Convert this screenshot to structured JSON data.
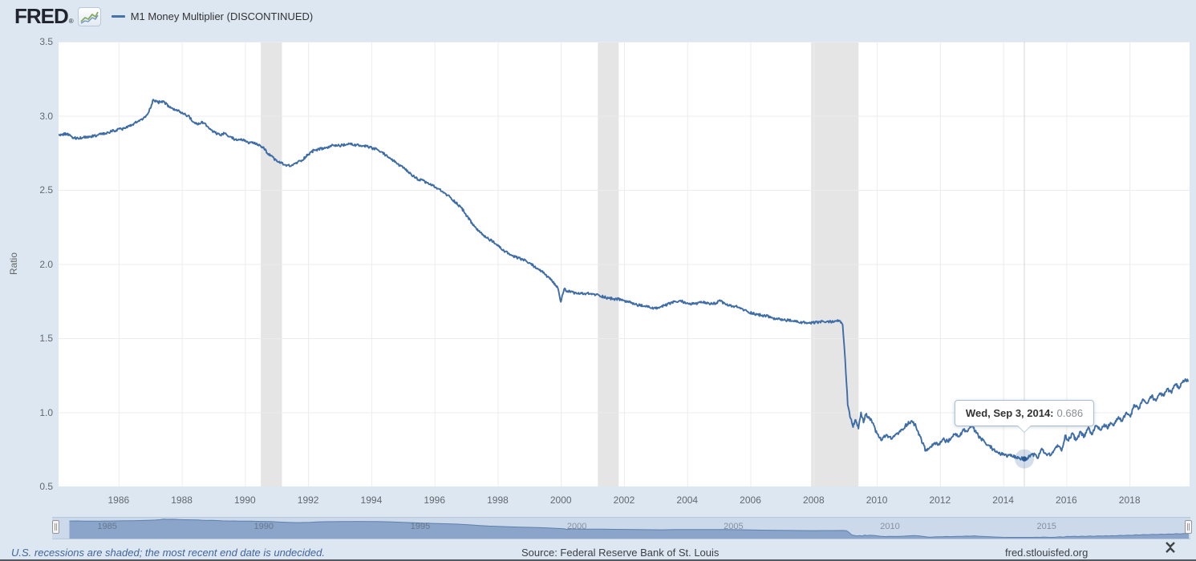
{
  "header": {
    "logo_text": "FRED",
    "logo_registered": "®",
    "legend": {
      "marker_color": "#4572a7",
      "label": "M1 Money Multiplier (DISCONTINUED)"
    }
  },
  "chart": {
    "y_axis": {
      "title": "Ratio",
      "tick_labels": [
        "3.5",
        "3.0",
        "2.5",
        "2.0",
        "1.5",
        "1.0",
        "0.5"
      ],
      "min": 0.5,
      "max": 3.5
    },
    "x_axis": {
      "tick_years": [
        1986,
        1988,
        1990,
        1992,
        1994,
        1996,
        1998,
        2000,
        2002,
        2004,
        2006,
        2008,
        2010,
        2012,
        2014,
        2016,
        2018
      ],
      "min_year": 1984.1,
      "max_year": 2019.9
    }
  },
  "tooltip": {
    "date_label": "Wed, Sep 3, 2014:",
    "value": "0.686",
    "point_year": 2014.67,
    "point_value": 0.686
  },
  "navigator": {
    "tick_years": [
      1985,
      1990,
      1995,
      2000,
      2005,
      2010,
      2015
    ],
    "min_year": 1983.55,
    "max_year": 2019.9
  },
  "footer": {
    "note": "U.S. recessions are shaded; the most recent end date is undecided.",
    "source": "Source: Federal Reserve Bank of St. Louis",
    "site": "fred.stlouisfed.org"
  },
  "colors": {
    "series": "#3d6ca6",
    "marker_dot": "#2a5a8f",
    "background": "#dde7f1",
    "plot_bg": "#ffffff",
    "recession_band": "#e5e5e5",
    "grid": "#ececec",
    "crosshair": "#d6d6d6",
    "nav_fill": "#8aa5c9",
    "nav_line": "#5d81ae",
    "axis_text": "#63686f"
  },
  "chart_data": {
    "type": "line",
    "title": "M1 Money Multiplier (DISCONTINUED)",
    "xlabel": "",
    "ylabel": "Ratio",
    "ylim": [
      0.5,
      3.5
    ],
    "xlim": [
      1984.1,
      2019.9
    ],
    "x_unit": "decimal_year",
    "grid": true,
    "legend_position": "top-header",
    "recession_bands": [
      [
        1990.5,
        1991.17
      ],
      [
        2001.17,
        2001.83
      ],
      [
        2007.92,
        2009.42
      ]
    ],
    "highlighted_point": {
      "date": "Wed, Sep 3, 2014",
      "x": 2014.67,
      "y": 0.686
    },
    "series": [
      {
        "name": "M1 Money Multiplier (DISCONTINUED)",
        "points": [
          [
            1984.1,
            2.87
          ],
          [
            1984.35,
            2.88
          ],
          [
            1984.6,
            2.85
          ],
          [
            1984.85,
            2.85
          ],
          [
            1985.1,
            2.86
          ],
          [
            1985.35,
            2.87
          ],
          [
            1985.6,
            2.88
          ],
          [
            1985.85,
            2.9
          ],
          [
            1986.1,
            2.91
          ],
          [
            1986.35,
            2.93
          ],
          [
            1986.6,
            2.96
          ],
          [
            1986.85,
            2.99
          ],
          [
            1987.0,
            3.05
          ],
          [
            1987.1,
            3.11
          ],
          [
            1987.25,
            3.09
          ],
          [
            1987.4,
            3.1
          ],
          [
            1987.6,
            3.06
          ],
          [
            1987.8,
            3.04
          ],
          [
            1988.0,
            3.02
          ],
          [
            1988.2,
            3.0
          ],
          [
            1988.35,
            2.96
          ],
          [
            1988.5,
            2.94
          ],
          [
            1988.65,
            2.96
          ],
          [
            1988.8,
            2.93
          ],
          [
            1989.0,
            2.89
          ],
          [
            1989.2,
            2.87
          ],
          [
            1989.35,
            2.88
          ],
          [
            1989.5,
            2.86
          ],
          [
            1989.7,
            2.84
          ],
          [
            1989.9,
            2.84
          ],
          [
            1990.1,
            2.82
          ],
          [
            1990.35,
            2.81
          ],
          [
            1990.55,
            2.79
          ],
          [
            1990.8,
            2.73
          ],
          [
            1991.05,
            2.69
          ],
          [
            1991.25,
            2.67
          ],
          [
            1991.45,
            2.66
          ],
          [
            1991.6,
            2.68
          ],
          [
            1991.8,
            2.7
          ],
          [
            1992.0,
            2.74
          ],
          [
            1992.2,
            2.77
          ],
          [
            1992.5,
            2.78
          ],
          [
            1992.8,
            2.8
          ],
          [
            1993.1,
            2.8
          ],
          [
            1993.3,
            2.81
          ],
          [
            1993.6,
            2.8
          ],
          [
            1993.9,
            2.79
          ],
          [
            1994.2,
            2.77
          ],
          [
            1994.5,
            2.73
          ],
          [
            1994.8,
            2.68
          ],
          [
            1995.0,
            2.65
          ],
          [
            1995.4,
            2.58
          ],
          [
            1995.75,
            2.55
          ],
          [
            1996.1,
            2.51
          ],
          [
            1996.5,
            2.45
          ],
          [
            1996.85,
            2.38
          ],
          [
            1997.2,
            2.27
          ],
          [
            1997.5,
            2.2
          ],
          [
            1997.85,
            2.15
          ],
          [
            1998.2,
            2.09
          ],
          [
            1998.5,
            2.05
          ],
          [
            1998.8,
            2.03
          ],
          [
            1999.05,
            2.0
          ],
          [
            1999.4,
            1.95
          ],
          [
            1999.65,
            1.9
          ],
          [
            1999.9,
            1.84
          ],
          [
            2000.0,
            1.745
          ],
          [
            2000.1,
            1.83
          ],
          [
            2000.3,
            1.81
          ],
          [
            2000.6,
            1.8
          ],
          [
            2000.9,
            1.8
          ],
          [
            2001.2,
            1.79
          ],
          [
            2001.5,
            1.77
          ],
          [
            2001.9,
            1.76
          ],
          [
            2002.2,
            1.74
          ],
          [
            2002.5,
            1.72
          ],
          [
            2002.8,
            1.71
          ],
          [
            2003.0,
            1.7
          ],
          [
            2003.3,
            1.72
          ],
          [
            2003.5,
            1.74
          ],
          [
            2003.8,
            1.75
          ],
          [
            2004.1,
            1.73
          ],
          [
            2004.5,
            1.74
          ],
          [
            2004.8,
            1.73
          ],
          [
            2005.05,
            1.75
          ],
          [
            2005.3,
            1.72
          ],
          [
            2005.6,
            1.71
          ],
          [
            2005.9,
            1.68
          ],
          [
            2006.2,
            1.66
          ],
          [
            2006.5,
            1.65
          ],
          [
            2006.8,
            1.63
          ],
          [
            2007.2,
            1.62
          ],
          [
            2007.5,
            1.61
          ],
          [
            2007.9,
            1.6
          ],
          [
            2008.2,
            1.61
          ],
          [
            2008.5,
            1.61
          ],
          [
            2008.8,
            1.62
          ],
          [
            2008.92,
            1.59
          ],
          [
            2009.0,
            1.35
          ],
          [
            2009.08,
            1.05
          ],
          [
            2009.15,
            0.97
          ],
          [
            2009.25,
            0.9
          ],
          [
            2009.33,
            0.95
          ],
          [
            2009.42,
            0.89
          ],
          [
            2009.5,
            1.0
          ],
          [
            2009.58,
            0.93
          ],
          [
            2009.65,
            0.985
          ],
          [
            2009.75,
            0.97
          ],
          [
            2009.85,
            0.93
          ],
          [
            2010.0,
            0.86
          ],
          [
            2010.15,
            0.81
          ],
          [
            2010.3,
            0.85
          ],
          [
            2010.45,
            0.82
          ],
          [
            2010.6,
            0.85
          ],
          [
            2010.75,
            0.87
          ],
          [
            2010.9,
            0.91
          ],
          [
            2011.08,
            0.94
          ],
          [
            2011.2,
            0.92
          ],
          [
            2011.35,
            0.85
          ],
          [
            2011.45,
            0.79
          ],
          [
            2011.55,
            0.74
          ],
          [
            2011.65,
            0.755
          ],
          [
            2011.8,
            0.79
          ],
          [
            2011.95,
            0.78
          ],
          [
            2012.1,
            0.82
          ],
          [
            2012.25,
            0.8
          ],
          [
            2012.45,
            0.85
          ],
          [
            2012.6,
            0.84
          ],
          [
            2012.75,
            0.88
          ],
          [
            2012.85,
            0.87
          ],
          [
            2013.0,
            0.91
          ],
          [
            2013.15,
            0.86
          ],
          [
            2013.3,
            0.82
          ],
          [
            2013.5,
            0.78
          ],
          [
            2013.7,
            0.75
          ],
          [
            2013.9,
            0.72
          ],
          [
            2014.1,
            0.71
          ],
          [
            2014.3,
            0.7
          ],
          [
            2014.5,
            0.69
          ],
          [
            2014.67,
            0.686
          ],
          [
            2014.85,
            0.7
          ],
          [
            2015.0,
            0.72
          ],
          [
            2015.1,
            0.69
          ],
          [
            2015.2,
            0.75
          ],
          [
            2015.35,
            0.72
          ],
          [
            2015.5,
            0.71
          ],
          [
            2015.62,
            0.745
          ],
          [
            2015.72,
            0.78
          ],
          [
            2015.85,
            0.74
          ],
          [
            2015.96,
            0.845
          ],
          [
            2016.05,
            0.81
          ],
          [
            2016.2,
            0.86
          ],
          [
            2016.3,
            0.81
          ],
          [
            2016.45,
            0.87
          ],
          [
            2016.55,
            0.83
          ],
          [
            2016.7,
            0.9
          ],
          [
            2016.8,
            0.85
          ],
          [
            2016.95,
            0.91
          ],
          [
            2017.1,
            0.88
          ],
          [
            2017.2,
            0.92
          ],
          [
            2017.3,
            0.89
          ],
          [
            2017.4,
            0.93
          ],
          [
            2017.5,
            0.91
          ],
          [
            2017.65,
            0.97
          ],
          [
            2017.77,
            0.94
          ],
          [
            2017.9,
            1.0
          ],
          [
            2018.03,
            0.97
          ],
          [
            2018.16,
            1.05
          ],
          [
            2018.28,
            1.02
          ],
          [
            2018.4,
            1.08
          ],
          [
            2018.55,
            1.06
          ],
          [
            2018.7,
            1.11
          ],
          [
            2018.82,
            1.08
          ],
          [
            2018.96,
            1.13
          ],
          [
            2019.08,
            1.11
          ],
          [
            2019.2,
            1.16
          ],
          [
            2019.33,
            1.13
          ],
          [
            2019.45,
            1.19
          ],
          [
            2019.57,
            1.16
          ],
          [
            2019.7,
            1.215
          ],
          [
            2019.85,
            1.21
          ]
        ]
      }
    ]
  }
}
